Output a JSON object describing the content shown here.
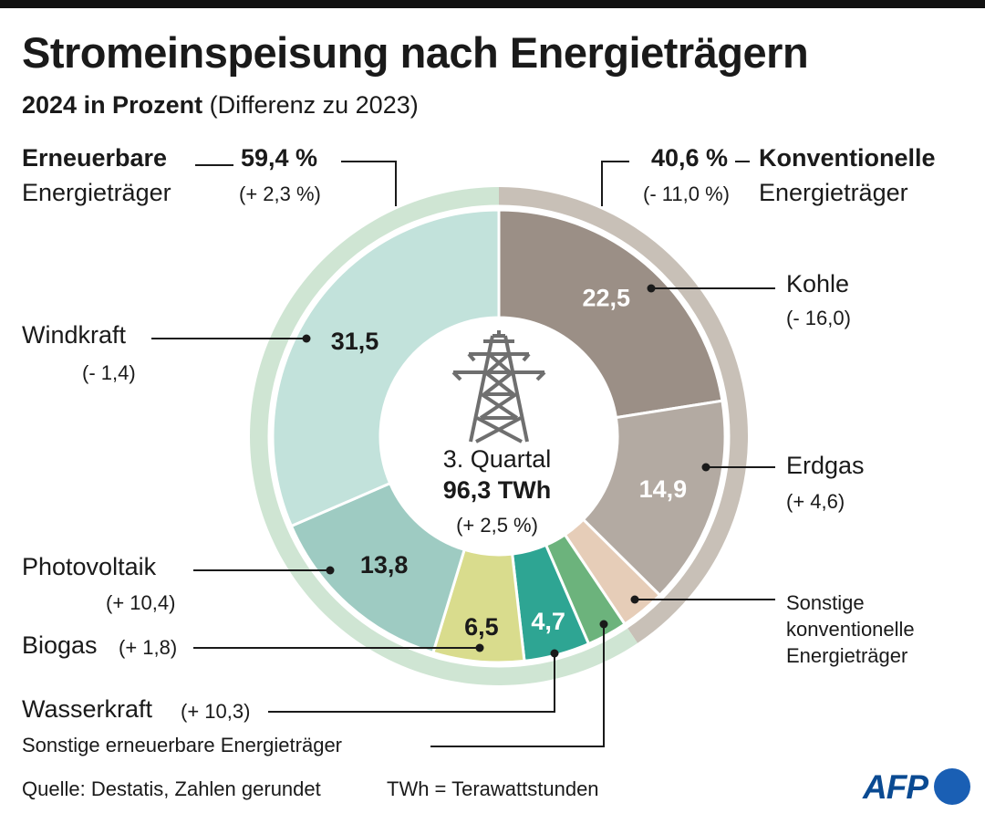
{
  "title": "Stromeinspeisung nach Energieträgern",
  "subtitle_bold": "2024 in Prozent",
  "subtitle_rest": "(Differenz zu 2023)",
  "groups": {
    "renewable": {
      "name_line1": "Erneuerbare",
      "name_line2": "Energieträger",
      "value": "59,4 %",
      "diff": "(+ 2,3 %)",
      "value_num": 59.4,
      "color": "#cfe5d3"
    },
    "conventional": {
      "value": "40,6 %",
      "name_line1": "Konventionelle",
      "name_line2": "Energieträger",
      "diff": "(- 11,0 %)",
      "value_num": 40.6,
      "color": "#c8c0b7"
    }
  },
  "labels": {
    "kohle_name": "Kohle",
    "kohle_diff": "(- 16,0)",
    "erdgas_name": "Erdgas",
    "erdgas_diff": "(+ 4,6)",
    "sonstige_konv_1": "Sonstige",
    "sonstige_konv_2": "konventionelle",
    "sonstige_konv_3": "Energieträger",
    "wind_name": "Windkraft",
    "wind_diff": "(- 1,4)",
    "pv_name": "Photovoltaik",
    "pv_diff": "(+ 10,4)",
    "biogas_name": "Biogas",
    "biogas_diff": "(+ 1,8)",
    "wasser_name": "Wasserkraft",
    "wasser_diff": "(+ 10,3)",
    "sonstige_ern": "Sonstige erneuerbare Energieträger"
  },
  "center": {
    "line1": "3. Quartal",
    "line2": "96,3 TWh",
    "line3": "(+ 2,5 %)"
  },
  "chart_data": {
    "type": "pie",
    "title": "Stromeinspeisung nach Energieträgern",
    "subtitle": "2024 in Prozent (Differenz zu 2023)",
    "unit": "%",
    "slices": [
      {
        "name": "Kohle",
        "value": 22.5,
        "value_label": "22,5",
        "diff": "(- 16,0)",
        "group": "conventional",
        "color": "#9b8f86",
        "label_color": "#ffffff"
      },
      {
        "name": "Erdgas",
        "value": 14.9,
        "value_label": "14,9",
        "diff": "(+ 4,6)",
        "group": "conventional",
        "color": "#b3aaa2",
        "label_color": "#ffffff"
      },
      {
        "name": "Sonstige konventionelle Energieträger",
        "value": 3.2,
        "value_label": "",
        "diff": "",
        "group": "conventional",
        "color": "#e6cdb8",
        "label_color": "#1a1a1a"
      },
      {
        "name": "Sonstige erneuerbare Energieträger",
        "value": 2.9,
        "value_label": "",
        "diff": "",
        "group": "renewable",
        "color": "#6cb37c",
        "label_color": "#1a1a1a"
      },
      {
        "name": "Wasserkraft",
        "value": 4.7,
        "value_label": "4,7",
        "diff": "(+ 10,3)",
        "group": "renewable",
        "color": "#2ea593",
        "label_color": "#ffffff"
      },
      {
        "name": "Biogas",
        "value": 6.5,
        "value_label": "6,5",
        "diff": "(+ 1,8)",
        "group": "renewable",
        "color": "#d9dc8d",
        "label_color": "#1a1a1a"
      },
      {
        "name": "Photovoltaik",
        "value": 13.8,
        "value_label": "13,8",
        "diff": "(+ 10,4)",
        "group": "renewable",
        "color": "#9ecbc2",
        "label_color": "#1a1a1a"
      },
      {
        "name": "Windkraft",
        "value": 31.5,
        "value_label": "31,5",
        "diff": "(- 1,4)",
        "group": "renewable",
        "color": "#c2e2db",
        "label_color": "#1a1a1a"
      }
    ],
    "groups": [
      {
        "name": "Erneuerbare Energieträger",
        "value": 59.4,
        "diff": "(+ 2,3 %)"
      },
      {
        "name": "Konventionelle Energieträger",
        "value": 40.6,
        "diff": "(- 11,0 %)"
      }
    ],
    "total": "96,3 TWh",
    "period": "3. Quartal"
  },
  "footer": {
    "source": "Quelle: Destatis, Zahlen gerundet",
    "unit_note": "TWh = Terawattstunden",
    "logo_text": "AFP"
  }
}
